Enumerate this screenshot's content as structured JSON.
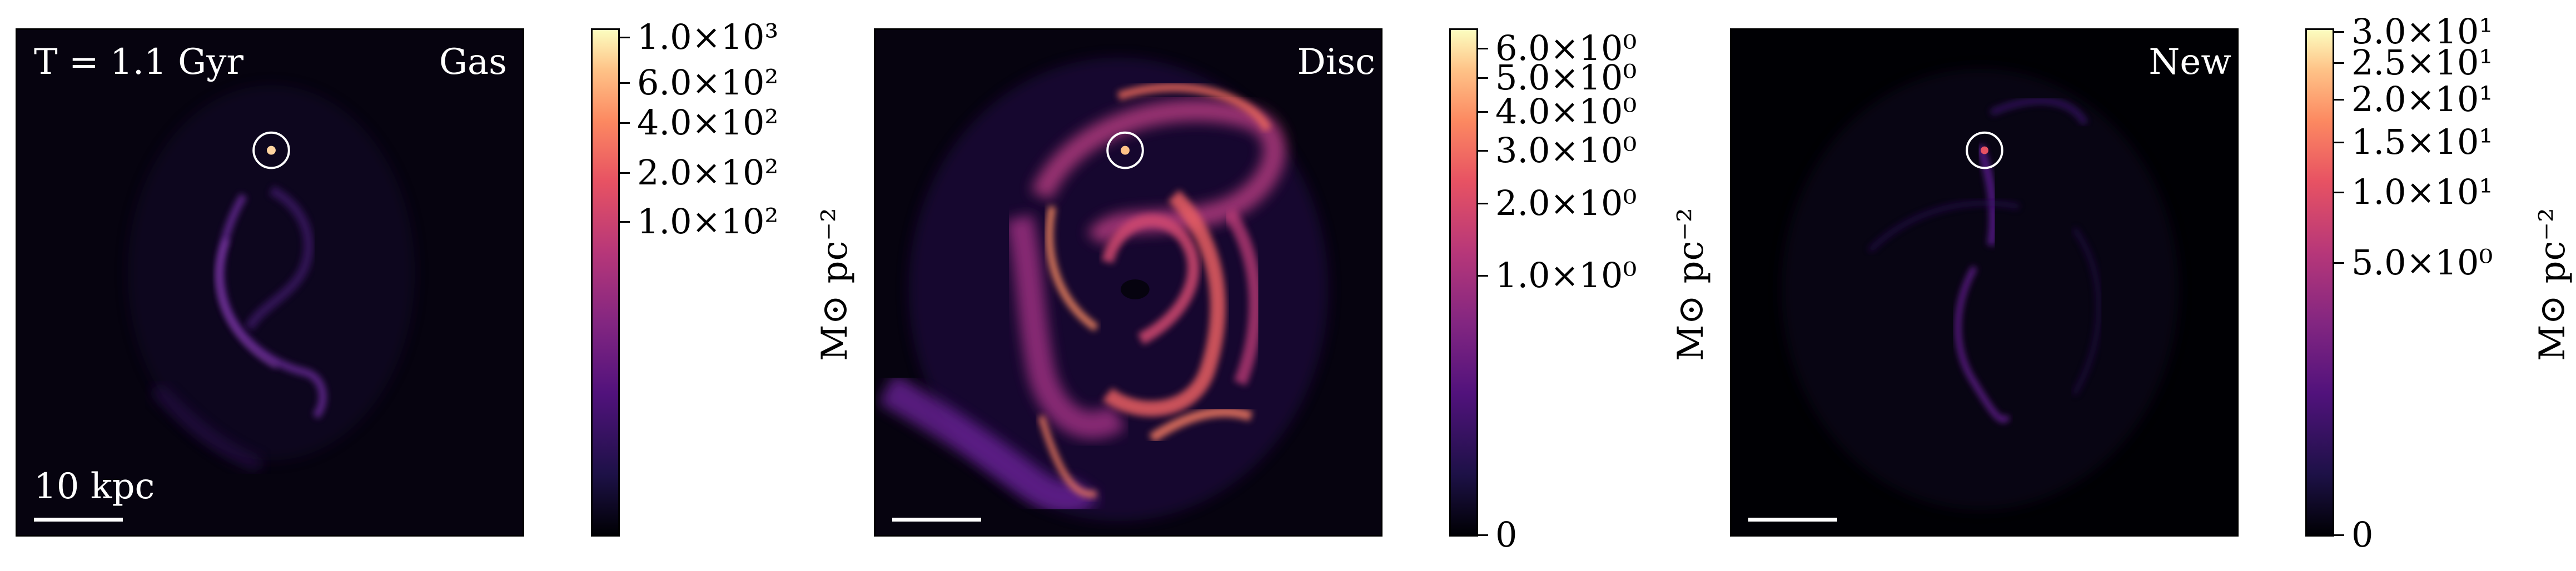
{
  "panels": [
    {
      "time_label": "T = 1.1 Gyr",
      "component_label": "Gas",
      "scale_label": "10 kpc",
      "colorbar": {
        "unit": "M⊙ pc⁻²",
        "ticks": [
          "1.0×10³",
          "6.0×10²",
          "4.0×10²",
          "2.0×10²",
          "1.0×10²"
        ]
      }
    },
    {
      "component_label": "Disc",
      "colorbar": {
        "unit": "M⊙ pc⁻²",
        "ticks": [
          "6.0×10⁰",
          "5.0×10⁰",
          "4.0×10⁰",
          "3.0×10⁰",
          "2.0×10⁰",
          "1.0×10⁰",
          "0"
        ]
      }
    },
    {
      "component_label": "New",
      "colorbar": {
        "unit": "M⊙ pc⁻²",
        "ticks": [
          "3.0×10¹",
          "2.5×10¹",
          "2.0×10¹",
          "1.5×10¹",
          "1.0×10¹",
          "5.0×10⁰",
          "0"
        ]
      }
    }
  ],
  "colormap": "magma",
  "colors": {
    "background": "#000004",
    "marker": "#ffffff"
  }
}
